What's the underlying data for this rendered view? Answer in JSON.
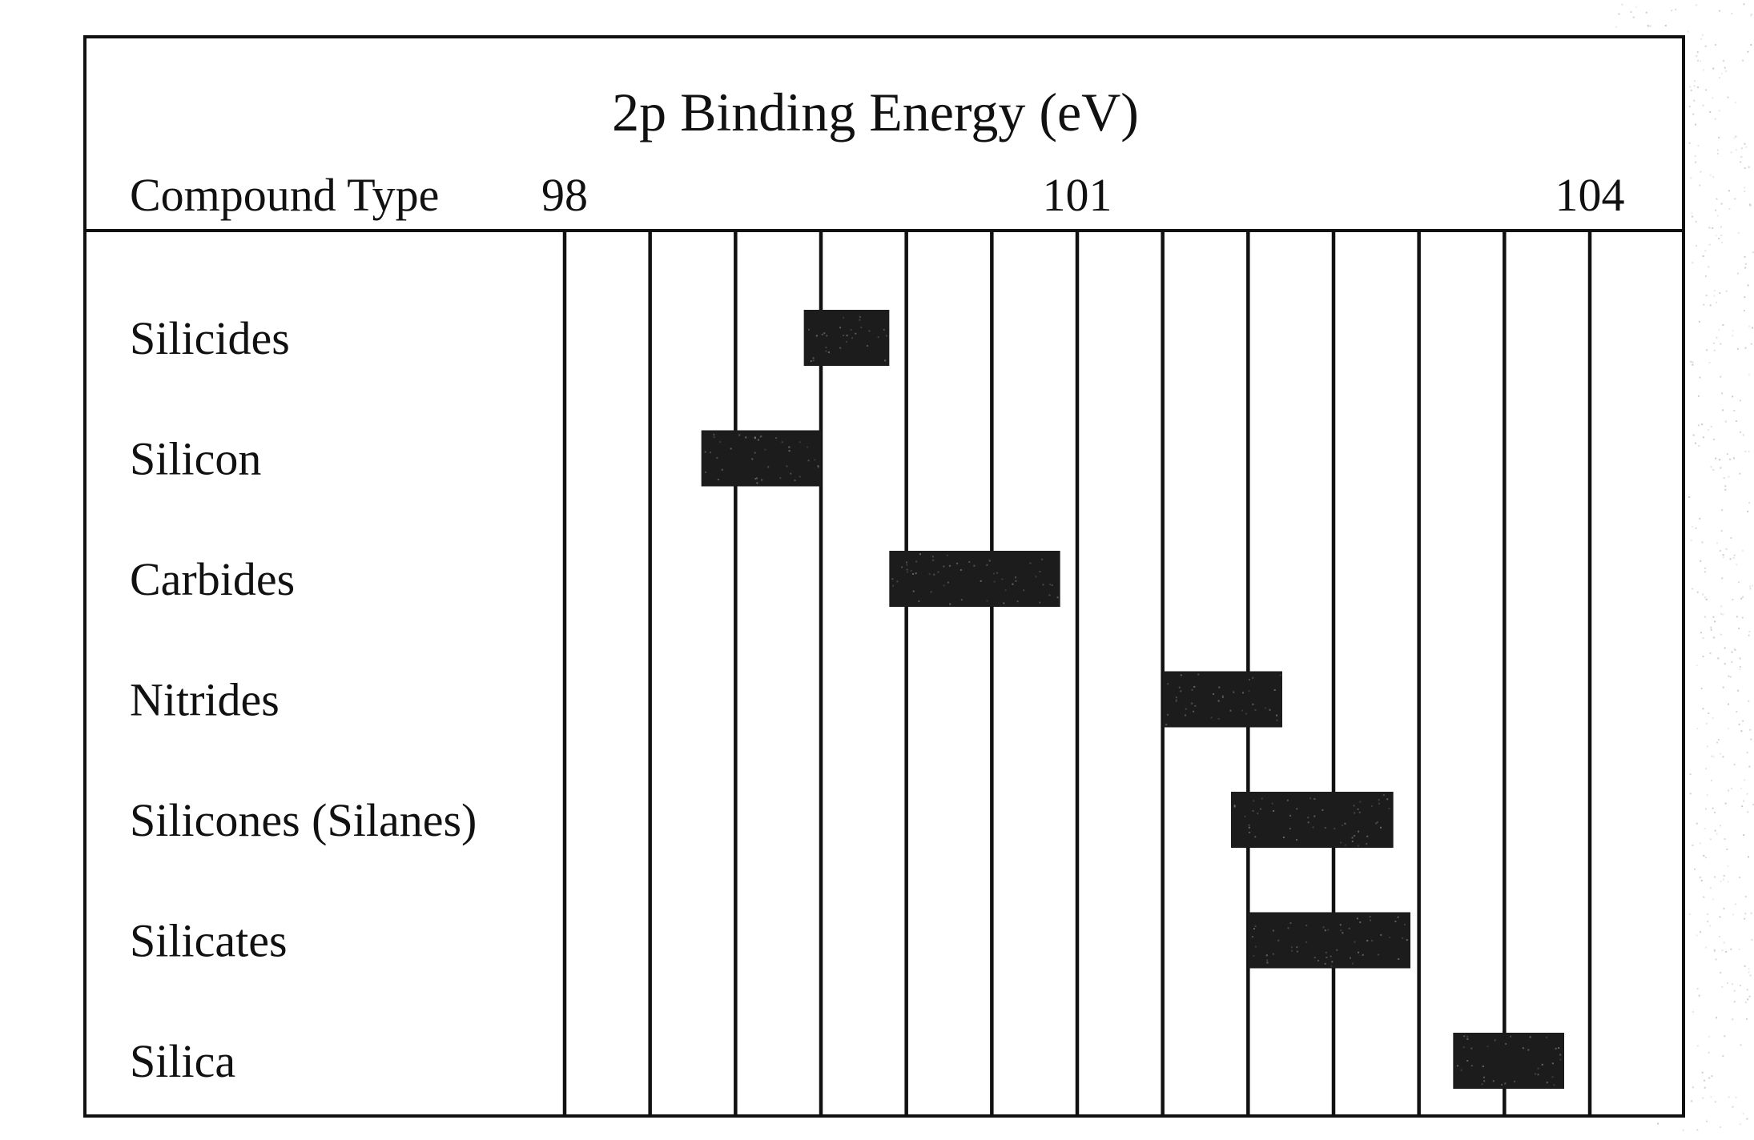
{
  "chart_data": {
    "type": "bar",
    "title": "2p Binding Energy (eV)",
    "category_header": "Compound Type",
    "xlim": [
      98,
      104.6
    ],
    "x_ticks": [
      98,
      101,
      104
    ],
    "x_tick_labels": [
      "98",
      "101",
      "104"
    ],
    "grid": true,
    "bar_color": "#1c1c1c",
    "categories": [
      "Silicides",
      "Silicon",
      "Carbides",
      "Nitrides",
      "Silicones (Silanes)",
      "Silicates",
      "Silica"
    ],
    "ranges": [
      [
        99.4,
        99.9
      ],
      [
        98.8,
        99.5
      ],
      [
        99.9,
        100.9
      ],
      [
        101.5,
        102.2
      ],
      [
        101.9,
        102.85
      ],
      [
        102.0,
        102.95
      ],
      [
        103.2,
        103.85
      ]
    ]
  }
}
